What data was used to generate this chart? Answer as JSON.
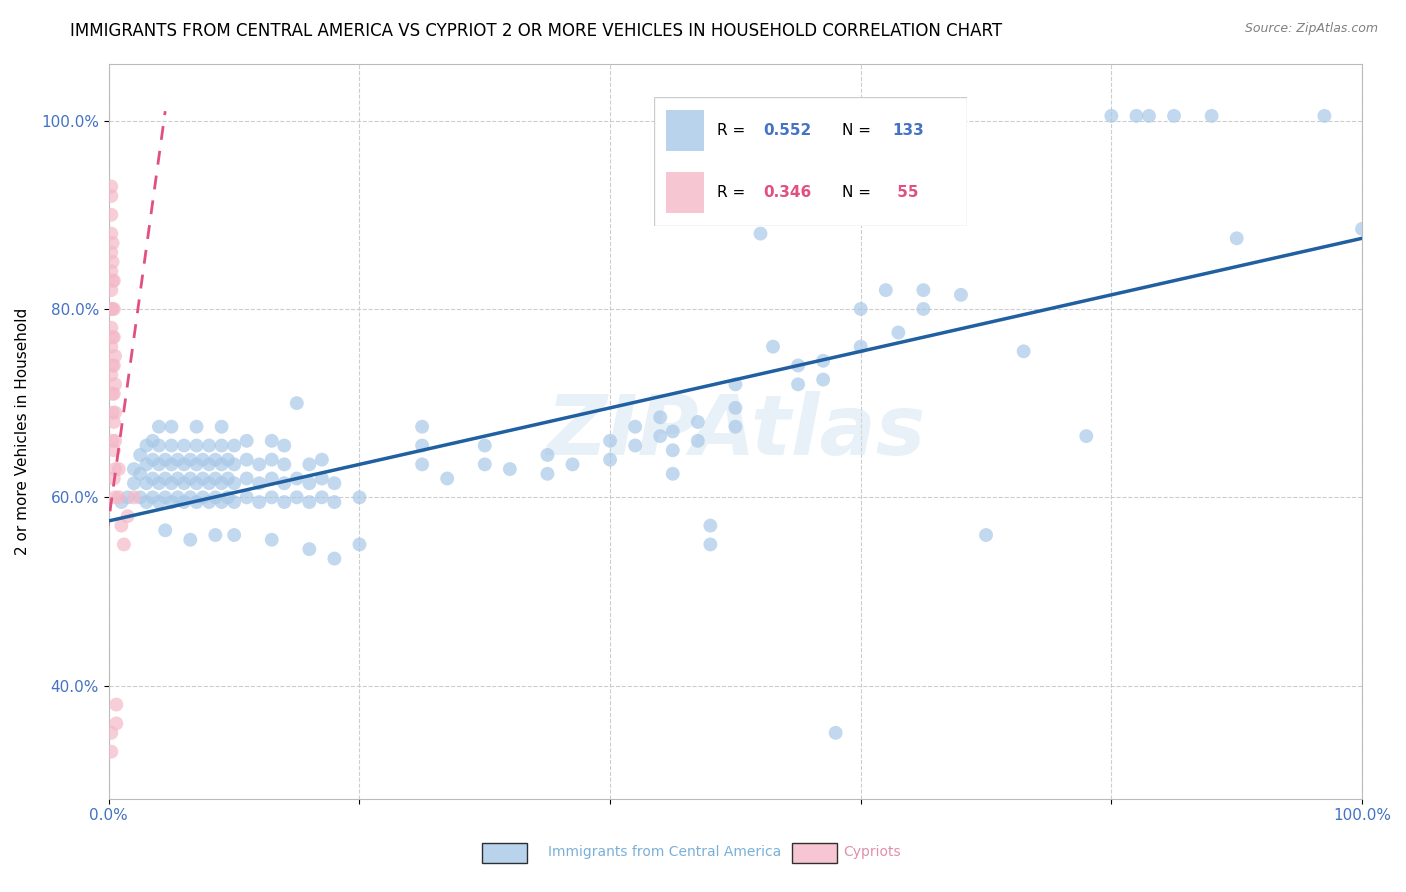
{
  "title": "IMMIGRANTS FROM CENTRAL AMERICA VS CYPRIOT 2 OR MORE VEHICLES IN HOUSEHOLD CORRELATION CHART",
  "source": "Source: ZipAtlas.com",
  "ylabel": "2 or more Vehicles in Household",
  "xlim": [
    0.0,
    1.0
  ],
  "ylim": [
    0.28,
    1.06
  ],
  "x_ticks": [
    0.0,
    0.2,
    0.4,
    0.6,
    0.8,
    1.0
  ],
  "y_ticks": [
    0.4,
    0.6,
    0.8,
    1.0
  ],
  "x_tick_labels": [
    "0.0%",
    "",
    "",
    "",
    "",
    "100.0%"
  ],
  "y_tick_labels": [
    "40.0%",
    "60.0%",
    "80.0%",
    "100.0%"
  ],
  "legend_entries": [
    {
      "label": "Immigrants from Central America",
      "R": "0.552",
      "N": "133",
      "color": "#a8c8e8"
    },
    {
      "label": "Cypriots",
      "R": "0.346",
      "N": " 55",
      "color": "#f4b8c8"
    }
  ],
  "R_color": "#4472c4",
  "N_color": "#4472c4",
  "pink_R_color": "#e05080",
  "blue_line_color": "#2060a0",
  "pink_line_color": "#e05080",
  "grid_color": "#c8c8c8",
  "watermark": "ZIPAtlas",
  "title_fontsize": 12,
  "axis_label_fontsize": 11,
  "tick_fontsize": 11,
  "tick_color": "#4472c4",
  "blue_scatter": [
    [
      0.01,
      0.595
    ],
    [
      0.015,
      0.6
    ],
    [
      0.02,
      0.615
    ],
    [
      0.02,
      0.63
    ],
    [
      0.025,
      0.6
    ],
    [
      0.025,
      0.625
    ],
    [
      0.025,
      0.645
    ],
    [
      0.03,
      0.595
    ],
    [
      0.03,
      0.615
    ],
    [
      0.03,
      0.635
    ],
    [
      0.03,
      0.655
    ],
    [
      0.035,
      0.6
    ],
    [
      0.035,
      0.62
    ],
    [
      0.035,
      0.64
    ],
    [
      0.035,
      0.66
    ],
    [
      0.04,
      0.595
    ],
    [
      0.04,
      0.615
    ],
    [
      0.04,
      0.635
    ],
    [
      0.04,
      0.655
    ],
    [
      0.04,
      0.675
    ],
    [
      0.045,
      0.6
    ],
    [
      0.045,
      0.62
    ],
    [
      0.045,
      0.64
    ],
    [
      0.045,
      0.565
    ],
    [
      0.05,
      0.595
    ],
    [
      0.05,
      0.615
    ],
    [
      0.05,
      0.635
    ],
    [
      0.05,
      0.655
    ],
    [
      0.05,
      0.675
    ],
    [
      0.055,
      0.6
    ],
    [
      0.055,
      0.62
    ],
    [
      0.055,
      0.64
    ],
    [
      0.06,
      0.595
    ],
    [
      0.06,
      0.615
    ],
    [
      0.06,
      0.635
    ],
    [
      0.06,
      0.655
    ],
    [
      0.065,
      0.6
    ],
    [
      0.065,
      0.62
    ],
    [
      0.065,
      0.64
    ],
    [
      0.065,
      0.555
    ],
    [
      0.07,
      0.595
    ],
    [
      0.07,
      0.615
    ],
    [
      0.07,
      0.635
    ],
    [
      0.07,
      0.655
    ],
    [
      0.07,
      0.675
    ],
    [
      0.075,
      0.6
    ],
    [
      0.075,
      0.62
    ],
    [
      0.075,
      0.64
    ],
    [
      0.08,
      0.595
    ],
    [
      0.08,
      0.615
    ],
    [
      0.08,
      0.635
    ],
    [
      0.08,
      0.655
    ],
    [
      0.085,
      0.6
    ],
    [
      0.085,
      0.62
    ],
    [
      0.085,
      0.64
    ],
    [
      0.085,
      0.56
    ],
    [
      0.09,
      0.595
    ],
    [
      0.09,
      0.615
    ],
    [
      0.09,
      0.635
    ],
    [
      0.09,
      0.655
    ],
    [
      0.09,
      0.675
    ],
    [
      0.095,
      0.6
    ],
    [
      0.095,
      0.62
    ],
    [
      0.095,
      0.64
    ],
    [
      0.1,
      0.595
    ],
    [
      0.1,
      0.615
    ],
    [
      0.1,
      0.635
    ],
    [
      0.1,
      0.655
    ],
    [
      0.1,
      0.56
    ],
    [
      0.11,
      0.6
    ],
    [
      0.11,
      0.62
    ],
    [
      0.11,
      0.64
    ],
    [
      0.11,
      0.66
    ],
    [
      0.12,
      0.595
    ],
    [
      0.12,
      0.615
    ],
    [
      0.12,
      0.635
    ],
    [
      0.13,
      0.6
    ],
    [
      0.13,
      0.62
    ],
    [
      0.13,
      0.64
    ],
    [
      0.13,
      0.66
    ],
    [
      0.13,
      0.555
    ],
    [
      0.14,
      0.595
    ],
    [
      0.14,
      0.615
    ],
    [
      0.14,
      0.635
    ],
    [
      0.14,
      0.655
    ],
    [
      0.15,
      0.7
    ],
    [
      0.15,
      0.6
    ],
    [
      0.15,
      0.62
    ],
    [
      0.16,
      0.595
    ],
    [
      0.16,
      0.615
    ],
    [
      0.16,
      0.635
    ],
    [
      0.16,
      0.545
    ],
    [
      0.17,
      0.6
    ],
    [
      0.17,
      0.62
    ],
    [
      0.17,
      0.64
    ],
    [
      0.18,
      0.595
    ],
    [
      0.18,
      0.615
    ],
    [
      0.18,
      0.535
    ],
    [
      0.2,
      0.6
    ],
    [
      0.2,
      0.55
    ],
    [
      0.25,
      0.635
    ],
    [
      0.25,
      0.655
    ],
    [
      0.25,
      0.675
    ],
    [
      0.27,
      0.62
    ],
    [
      0.3,
      0.635
    ],
    [
      0.3,
      0.655
    ],
    [
      0.32,
      0.63
    ],
    [
      0.35,
      0.645
    ],
    [
      0.35,
      0.625
    ],
    [
      0.37,
      0.635
    ],
    [
      0.4,
      0.66
    ],
    [
      0.4,
      0.64
    ],
    [
      0.42,
      0.655
    ],
    [
      0.42,
      0.675
    ],
    [
      0.44,
      0.665
    ],
    [
      0.44,
      0.685
    ],
    [
      0.45,
      0.67
    ],
    [
      0.45,
      0.65
    ],
    [
      0.45,
      0.625
    ],
    [
      0.47,
      0.66
    ],
    [
      0.47,
      0.68
    ],
    [
      0.48,
      0.55
    ],
    [
      0.48,
      0.57
    ],
    [
      0.5,
      0.72
    ],
    [
      0.5,
      0.675
    ],
    [
      0.5,
      0.695
    ],
    [
      0.52,
      0.88
    ],
    [
      0.53,
      0.76
    ],
    [
      0.55,
      0.74
    ],
    [
      0.55,
      0.72
    ],
    [
      0.57,
      0.745
    ],
    [
      0.57,
      0.725
    ],
    [
      0.58,
      0.35
    ],
    [
      0.6,
      0.8
    ],
    [
      0.6,
      0.76
    ],
    [
      0.62,
      0.82
    ],
    [
      0.63,
      0.775
    ],
    [
      0.65,
      0.82
    ],
    [
      0.65,
      0.8
    ],
    [
      0.68,
      0.815
    ],
    [
      0.7,
      0.56
    ],
    [
      0.73,
      0.755
    ],
    [
      0.78,
      0.665
    ],
    [
      0.8,
      1.005
    ],
    [
      0.82,
      1.005
    ],
    [
      0.83,
      1.005
    ],
    [
      0.85,
      1.005
    ],
    [
      0.88,
      1.005
    ],
    [
      0.9,
      0.875
    ],
    [
      0.97,
      1.005
    ],
    [
      1.0,
      0.885
    ]
  ],
  "pink_scatter": [
    [
      0.002,
      0.73
    ],
    [
      0.002,
      0.76
    ],
    [
      0.002,
      0.78
    ],
    [
      0.002,
      0.8
    ],
    [
      0.002,
      0.82
    ],
    [
      0.002,
      0.84
    ],
    [
      0.002,
      0.86
    ],
    [
      0.002,
      0.88
    ],
    [
      0.002,
      0.9
    ],
    [
      0.002,
      0.92
    ],
    [
      0.002,
      0.93
    ],
    [
      0.003,
      0.66
    ],
    [
      0.003,
      0.69
    ],
    [
      0.003,
      0.71
    ],
    [
      0.003,
      0.74
    ],
    [
      0.003,
      0.77
    ],
    [
      0.003,
      0.8
    ],
    [
      0.003,
      0.83
    ],
    [
      0.003,
      0.85
    ],
    [
      0.003,
      0.87
    ],
    [
      0.004,
      0.62
    ],
    [
      0.004,
      0.65
    ],
    [
      0.004,
      0.68
    ],
    [
      0.004,
      0.71
    ],
    [
      0.004,
      0.74
    ],
    [
      0.004,
      0.77
    ],
    [
      0.004,
      0.8
    ],
    [
      0.004,
      0.83
    ],
    [
      0.005,
      0.6
    ],
    [
      0.005,
      0.63
    ],
    [
      0.005,
      0.66
    ],
    [
      0.005,
      0.69
    ],
    [
      0.005,
      0.72
    ],
    [
      0.005,
      0.75
    ],
    [
      0.006,
      0.38
    ],
    [
      0.006,
      0.36
    ],
    [
      0.008,
      0.6
    ],
    [
      0.008,
      0.63
    ],
    [
      0.01,
      0.57
    ],
    [
      0.012,
      0.55
    ],
    [
      0.015,
      0.58
    ],
    [
      0.02,
      0.6
    ],
    [
      0.002,
      0.35
    ],
    [
      0.002,
      0.33
    ]
  ],
  "blue_line": {
    "x0": 0.0,
    "y0": 0.575,
    "x1": 1.0,
    "y1": 0.875
  },
  "pink_line": {
    "x0": -0.01,
    "y0": 0.48,
    "x1": 0.045,
    "y1": 1.01
  }
}
